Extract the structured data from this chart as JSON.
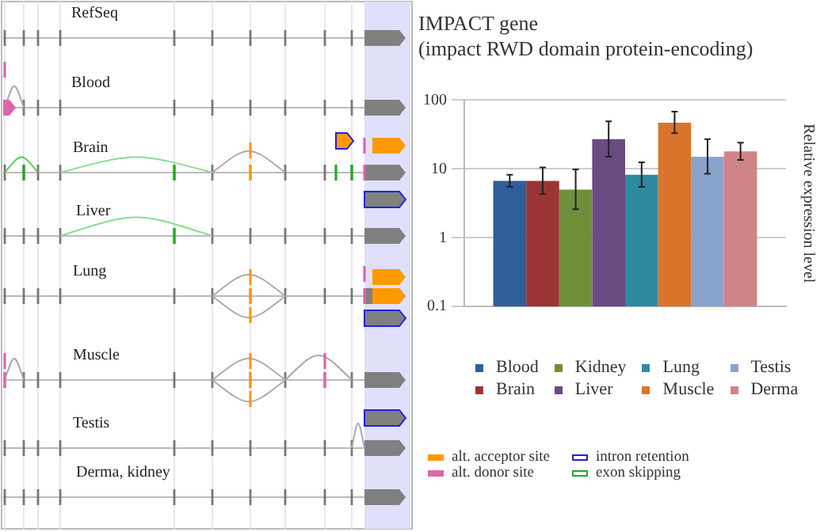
{
  "chart_data": {
    "type": "bar",
    "title": "IMPACT gene",
    "subtitle": "(impact RWD domain protein-encoding)",
    "ylabel": "Relative expression level",
    "categories": [
      null
    ],
    "series": [
      {
        "name": "Blood",
        "color": "#2f5f98",
        "values": [
          6.7
        ],
        "errors": [
          [
            5.5,
            8.2
          ]
        ]
      },
      {
        "name": "Brain",
        "color": "#9b3535",
        "values": [
          6.7
        ],
        "errors": [
          [
            4.3,
            10.5
          ]
        ]
      },
      {
        "name": "Kidney",
        "color": "#6f8f3a",
        "values": [
          5.0
        ],
        "errors": [
          [
            2.6,
            9.8
          ]
        ]
      },
      {
        "name": "Liver",
        "color": "#6a4a80",
        "values": [
          27
        ],
        "errors": [
          [
            15,
            49
          ]
        ]
      },
      {
        "name": "Lung",
        "color": "#2e8aa0",
        "values": [
          8.2
        ],
        "errors": [
          [
            5.5,
            12.5
          ]
        ]
      },
      {
        "name": "Muscle",
        "color": "#d9752a",
        "values": [
          47
        ],
        "errors": [
          [
            33,
            68
          ]
        ]
      },
      {
        "name": "Testis",
        "color": "#8aa3cc",
        "values": [
          15
        ],
        "errors": [
          [
            8.5,
            27
          ]
        ]
      },
      {
        "name": "Derma",
        "color": "#cf8585",
        "values": [
          18
        ],
        "errors": [
          [
            13.5,
            24
          ]
        ]
      }
    ],
    "log": "y",
    "ylim": [
      0.1,
      100
    ],
    "yticks": [
      0.1,
      1,
      10,
      100
    ],
    "grid": "y",
    "legend": "bottom",
    "annotations": [
      "RefSeq",
      "Blood",
      "Brain",
      "Liver",
      "Lung",
      "Muscle",
      "Testis",
      "Derma, kidney",
      "alt. acceptor site",
      "alt. donor site",
      "intron retention",
      "exon skipping"
    ]
  }
}
